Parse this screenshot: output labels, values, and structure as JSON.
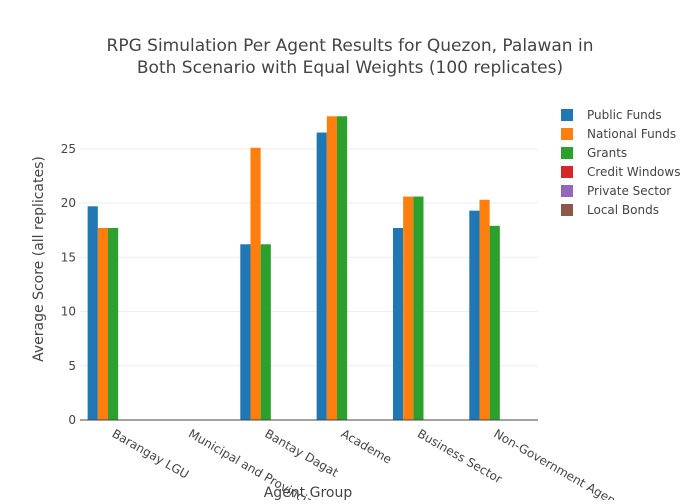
{
  "chart_data": {
    "type": "bar",
    "title_lines": [
      "RPG Simulation Per Agent Results for Quezon, Palawan in",
      "Both Scenario with Equal Weights (100 replicates)"
    ],
    "xlabel": "Agent Group",
    "ylabel": "Average Score (all replicates)",
    "ylim": [
      0,
      29.5
    ],
    "yticks": [
      0,
      5,
      10,
      15,
      20,
      25
    ],
    "grid": true,
    "legend_position": "right",
    "categories": [
      "Barangay LGU",
      "Municipal and Provincial",
      "Bantay Dagat",
      "Academe",
      "Business Sector",
      "Non-Government Agencies"
    ],
    "series": [
      {
        "name": "Public Funds",
        "color": "#1f77b4",
        "values": [
          19.7,
          0,
          16.2,
          26.5,
          17.7,
          19.3
        ]
      },
      {
        "name": "National Funds",
        "color": "#ff7f0e",
        "values": [
          17.7,
          0,
          25.1,
          28.0,
          20.6,
          20.3
        ]
      },
      {
        "name": "Grants",
        "color": "#2ca02c",
        "values": [
          17.7,
          0,
          16.2,
          28.0,
          20.6,
          17.9
        ]
      },
      {
        "name": "Credit Windows",
        "color": "#d62728",
        "values": [
          0,
          0,
          0,
          0,
          0,
          0
        ]
      },
      {
        "name": "Private Sector",
        "color": "#9467bd",
        "values": [
          0,
          0,
          0,
          0,
          0,
          0
        ]
      },
      {
        "name": "Local Bonds",
        "color": "#8c564b",
        "values": [
          0,
          0,
          0,
          0,
          0,
          0
        ]
      }
    ]
  }
}
